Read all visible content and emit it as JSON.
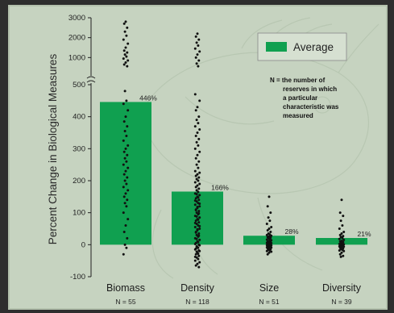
{
  "chart_data": {
    "type": "bar",
    "title": "",
    "ylabel": "Percent Change in Biological Measures",
    "xlabel": "",
    "ylim": [
      -100,
      500
    ],
    "upper_ylim": [
      0,
      3000
    ],
    "lower_ticks": [
      -100,
      0,
      100,
      200,
      300,
      400,
      500
    ],
    "upper_ticks": [
      1000,
      2000,
      3000
    ],
    "categories": [
      "Biomass",
      "Density",
      "Size",
      "Diversity"
    ],
    "n_labels": [
      "N = 55",
      "N = 118",
      "N = 51",
      "N = 39"
    ],
    "series": [
      {
        "name": "Average",
        "values": [
          446,
          166,
          28,
          21
        ]
      }
    ],
    "value_labels": [
      "446%",
      "166%",
      "28%",
      "21%"
    ],
    "legend": {
      "label": "Average",
      "position": "top-right"
    },
    "note": "N = the number of reserves in which a particular characteristic was measured",
    "grid": false,
    "colors": {
      "bar": "#10a050",
      "points": "#111111",
      "axis": "#222222",
      "background": "#c6d3c0"
    },
    "points": [
      [
        2800,
        2700,
        2500,
        2300,
        2100,
        1900,
        1700,
        1500,
        1350,
        1250,
        1150,
        1050,
        950,
        850,
        750,
        650,
        560,
        480,
        450,
        440,
        420,
        400,
        385,
        370,
        355,
        340,
        325,
        310,
        300,
        290,
        280,
        270,
        260,
        250,
        240,
        230,
        220,
        210,
        200,
        190,
        180,
        170,
        160,
        150,
        140,
        130,
        120,
        100,
        80,
        60,
        40,
        20,
        0,
        -10,
        -30
      ],
      [
        2200,
        2050,
        1900,
        1750,
        1600,
        1450,
        1300,
        1150,
        1000,
        850,
        700,
        560,
        470,
        450,
        430,
        420,
        400,
        390,
        380,
        370,
        360,
        350,
        340,
        330,
        320,
        310,
        300,
        290,
        280,
        270,
        260,
        250,
        240,
        230,
        225,
        220,
        215,
        210,
        205,
        200,
        195,
        190,
        185,
        180,
        175,
        170,
        165,
        160,
        155,
        150,
        145,
        140,
        135,
        130,
        125,
        120,
        115,
        110,
        105,
        100,
        95,
        90,
        85,
        80,
        75,
        70,
        65,
        60,
        55,
        50,
        45,
        40,
        35,
        30,
        25,
        20,
        15,
        10,
        5,
        0,
        -5,
        -10,
        -15,
        -20,
        -25,
        -30,
        -35,
        -40,
        -45,
        -50,
        -55,
        -60,
        -65,
        -70,
        158,
        148,
        138,
        128,
        118,
        108,
        98,
        88,
        78,
        68,
        58,
        48,
        38,
        28,
        18,
        8,
        2,
        -2,
        -8,
        -12,
        -18,
        -22,
        -28,
        -38
      ],
      [
        150,
        120,
        100,
        85,
        75,
        65,
        55,
        50,
        45,
        40,
        35,
        32,
        30,
        28,
        26,
        24,
        22,
        20,
        18,
        16,
        14,
        12,
        10,
        9,
        8,
        7,
        6,
        5,
        4,
        3,
        2,
        1,
        0,
        -1,
        -2,
        -3,
        -4,
        -5,
        -6,
        -7,
        -8,
        -9,
        -10,
        -12,
        -14,
        -16,
        -18,
        -20,
        -22,
        -25,
        -30
      ],
      [
        140,
        100,
        90,
        75,
        60,
        50,
        40,
        35,
        30,
        27,
        24,
        21,
        18,
        15,
        12,
        10,
        8,
        6,
        4,
        2,
        1,
        0,
        -1,
        -2,
        -3,
        -4,
        -5,
        -6,
        -8,
        -10,
        -12,
        -14,
        -16,
        -18,
        -20,
        -25,
        -30,
        -35,
        -38
      ]
    ]
  }
}
